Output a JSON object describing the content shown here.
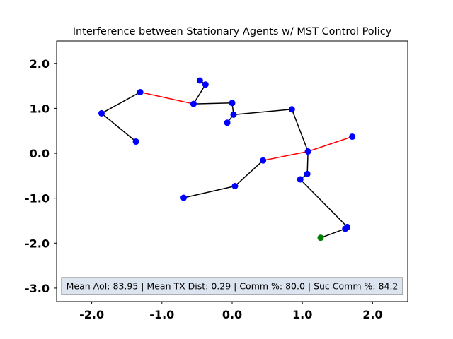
{
  "chart_data": {
    "type": "scatter",
    "title": "Interference between Stationary Agents w/ MST Control Policy",
    "xlabel": "",
    "ylabel": "",
    "xlim": [
      -2.5,
      2.5
    ],
    "ylim": [
      -3.3,
      2.5
    ],
    "x_ticks": [
      -2.0,
      -1.0,
      0.0,
      1.0,
      2.0
    ],
    "y_ticks": [
      -3.0,
      -2.0,
      -1.0,
      0.0,
      1.0,
      2.0
    ],
    "x_tick_labels": [
      "-2.0",
      "-1.0",
      "0.0",
      "1.0",
      "2.0"
    ],
    "y_tick_labels": [
      "-3.0",
      "-2.0",
      "-1.0",
      "0.0",
      "1.0",
      "2.0"
    ],
    "grid": false,
    "agents": [
      {
        "id": "a1",
        "x": -1.37,
        "y": 0.26,
        "color": "#0000ff"
      },
      {
        "id": "a2",
        "x": -1.86,
        "y": 0.89,
        "color": "#0000ff"
      },
      {
        "id": "a3",
        "x": -1.31,
        "y": 1.36,
        "color": "#0000ff"
      },
      {
        "id": "a4",
        "x": -0.55,
        "y": 1.1,
        "color": "#0000ff"
      },
      {
        "id": "a5",
        "x": 0.0,
        "y": 1.12,
        "color": "#0000ff"
      },
      {
        "id": "a6",
        "x": 0.02,
        "y": 0.86,
        "color": "#0000ff"
      },
      {
        "id": "a7",
        "x": -0.07,
        "y": 0.68,
        "color": "#0000ff"
      },
      {
        "id": "a8",
        "x": -0.46,
        "y": 1.62,
        "color": "#0000ff"
      },
      {
        "id": "a9",
        "x": -0.38,
        "y": 1.53,
        "color": "#0000ff"
      },
      {
        "id": "a10",
        "x": 0.85,
        "y": 0.98,
        "color": "#0000ff"
      },
      {
        "id": "a11",
        "x": 1.08,
        "y": 0.04,
        "color": "#0000ff"
      },
      {
        "id": "a12",
        "x": 1.71,
        "y": 0.37,
        "color": "#0000ff"
      },
      {
        "id": "a13",
        "x": 0.44,
        "y": -0.16,
        "color": "#0000ff"
      },
      {
        "id": "a14",
        "x": 1.07,
        "y": -0.46,
        "color": "#0000ff"
      },
      {
        "id": "a15",
        "x": 0.97,
        "y": -0.58,
        "color": "#0000ff"
      },
      {
        "id": "a16",
        "x": 0.04,
        "y": -0.73,
        "color": "#0000ff"
      },
      {
        "id": "a17",
        "x": -0.69,
        "y": -0.99,
        "color": "#0000ff"
      },
      {
        "id": "a18",
        "x": 1.64,
        "y": -1.64,
        "color": "#0000ff"
      },
      {
        "id": "a19",
        "x": 1.61,
        "y": -1.68,
        "color": "#0000ff"
      },
      {
        "id": "a20",
        "x": 1.26,
        "y": -1.88,
        "color": "#008000"
      }
    ],
    "links": [
      {
        "from": "a1",
        "to": "a2",
        "color": "#000000"
      },
      {
        "from": "a2",
        "to": "a3",
        "color": "#000000"
      },
      {
        "from": "a3",
        "to": "a4",
        "color": "#ff0000"
      },
      {
        "from": "a4",
        "to": "a5",
        "color": "#000000"
      },
      {
        "from": "a5",
        "to": "a6",
        "color": "#000000"
      },
      {
        "from": "a6",
        "to": "a7",
        "color": "#000000"
      },
      {
        "from": "a6",
        "to": "a10",
        "color": "#000000"
      },
      {
        "from": "a10",
        "to": "a11",
        "color": "#000000"
      },
      {
        "from": "a13",
        "to": "a11",
        "color": "#ff0000"
      },
      {
        "from": "a11",
        "to": "a12",
        "color": "#ff0000"
      },
      {
        "from": "a16",
        "to": "a13",
        "color": "#000000"
      },
      {
        "from": "a17",
        "to": "a16",
        "color": "#000000"
      },
      {
        "from": "a11",
        "to": "a14",
        "color": "#000000"
      },
      {
        "from": "a14",
        "to": "a15",
        "color": "#000000"
      },
      {
        "from": "a15",
        "to": "a18",
        "color": "#000000"
      },
      {
        "from": "a18",
        "to": "a19",
        "color": "#000000"
      },
      {
        "from": "a19",
        "to": "a20",
        "color": "#000000"
      },
      {
        "from": "a4",
        "to": "a9",
        "color": "#000000"
      },
      {
        "from": "a9",
        "to": "a8",
        "color": "#000000"
      }
    ],
    "annotation": "Mean AoI: 83.95 | Mean TX Dist: 0.29 | Comm %: 80.0 | Suc Comm %: 84.2",
    "annotation_box": {
      "facecolor": "#dce4ef",
      "edgecolor": "#777777"
    }
  }
}
